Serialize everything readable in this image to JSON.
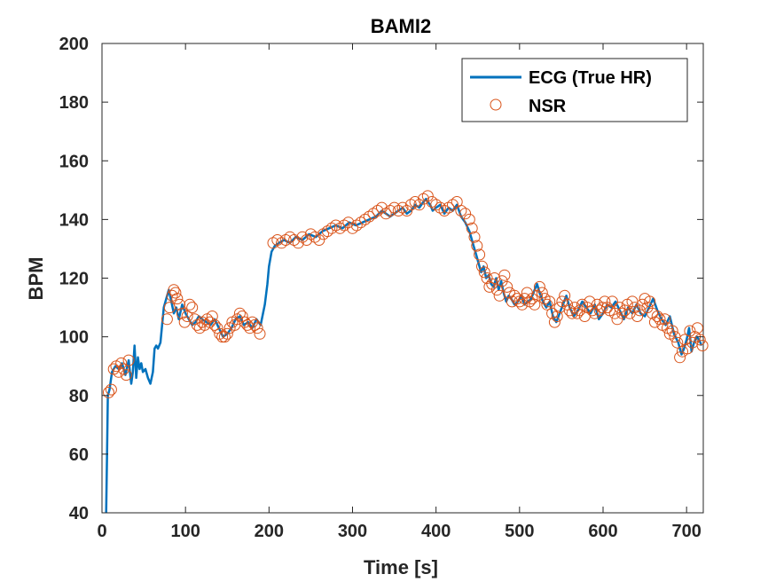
{
  "chart_data": {
    "type": "line",
    "title": "BAMI2",
    "xlabel": "Time [s]",
    "ylabel": "BPM",
    "xlim": [
      0,
      720
    ],
    "ylim": [
      40,
      200
    ],
    "xticks": [
      0,
      100,
      200,
      300,
      400,
      500,
      600,
      700
    ],
    "yticks": [
      40,
      60,
      80,
      100,
      120,
      140,
      160,
      180,
      200
    ],
    "grid": false,
    "legend_position": "top-right",
    "series": [
      {
        "name": "ECG (True HR)",
        "style": "line",
        "color": "#0072BD",
        "x": [
          5,
          6,
          7,
          9,
          12,
          16,
          20,
          24,
          28,
          32,
          35,
          37,
          39,
          41,
          43,
          45,
          47,
          49,
          52,
          55,
          58,
          61,
          63,
          65,
          67,
          70,
          72,
          74,
          77,
          80,
          83,
          86,
          89,
          92,
          96,
          100,
          104,
          108,
          112,
          116,
          120,
          125,
          130,
          135,
          140,
          145,
          150,
          155,
          160,
          165,
          170,
          175,
          180,
          185,
          190,
          195,
          198,
          200,
          203,
          207,
          212,
          218,
          225,
          232,
          240,
          248,
          256,
          264,
          272,
          280,
          288,
          296,
          304,
          312,
          320,
          328,
          335,
          340,
          345,
          350,
          355,
          360,
          365,
          370,
          375,
          380,
          385,
          388,
          390,
          393,
          396,
          400,
          405,
          410,
          415,
          420,
          425,
          430,
          435,
          440,
          445,
          448,
          451,
          454,
          457,
          460,
          463,
          466,
          469,
          472,
          475,
          478,
          481,
          484,
          487,
          490,
          494,
          498,
          502,
          506,
          510,
          514,
          518,
          521,
          524,
          528,
          532,
          536,
          540,
          544,
          548,
          552,
          556,
          560,
          565,
          570,
          575,
          580,
          585,
          590,
          595,
          600,
          605,
          610,
          615,
          620,
          625,
          630,
          635,
          640,
          645,
          650,
          655,
          660,
          665,
          670,
          675,
          680,
          685,
          690,
          694,
          697,
          700,
          703,
          706,
          709,
          712,
          715,
          718
        ],
        "y": [
          40,
          60,
          80,
          82,
          88,
          90,
          89,
          91,
          87,
          92,
          84,
          88,
          97,
          86,
          93,
          89,
          91,
          88,
          89,
          86,
          84,
          88,
          96,
          97,
          96,
          98,
          104,
          110,
          113,
          116,
          112,
          108,
          110,
          106,
          111,
          108,
          106,
          104,
          105,
          107,
          106,
          105,
          104,
          106,
          103,
          100,
          101,
          103,
          106,
          107,
          104,
          105,
          103,
          106,
          104,
          111,
          118,
          124,
          129,
          131,
          132,
          133,
          132,
          134,
          133,
          135,
          134,
          136,
          137,
          138,
          137,
          139,
          138,
          139,
          140,
          141,
          143,
          142,
          141,
          142,
          143,
          144,
          142,
          143,
          145,
          144,
          146,
          147,
          146,
          145,
          143,
          144,
          145,
          142,
          144,
          143,
          145,
          141,
          139,
          136,
          131,
          128,
          125,
          122,
          124,
          120,
          121,
          118,
          117,
          120,
          116,
          119,
          115,
          112,
          114,
          113,
          111,
          112,
          114,
          111,
          112,
          113,
          116,
          118,
          115,
          112,
          110,
          112,
          107,
          105,
          108,
          111,
          114,
          110,
          107,
          109,
          112,
          110,
          108,
          111,
          106,
          108,
          111,
          110,
          112,
          109,
          106,
          110,
          108,
          111,
          108,
          107,
          110,
          113,
          109,
          106,
          104,
          107,
          101,
          98,
          94,
          96,
          99,
          103,
          95,
          98,
          100,
          99,
          97
        ]
      },
      {
        "name": "NSR",
        "style": "marker",
        "marker": "circle",
        "color": "#D95319",
        "x": [
          8,
          11,
          14,
          17,
          20,
          23,
          26,
          29,
          32,
          78,
          81,
          84,
          86,
          88,
          90,
          93,
          96,
          99,
          102,
          105,
          108,
          111,
          114,
          117,
          120,
          123,
          126,
          129,
          132,
          135,
          138,
          141,
          144,
          147,
          150,
          153,
          156,
          159,
          162,
          165,
          168,
          171,
          174,
          177,
          180,
          183,
          186,
          189,
          205,
          210,
          215,
          220,
          225,
          230,
          235,
          240,
          245,
          250,
          255,
          260,
          265,
          270,
          275,
          280,
          285,
          290,
          295,
          300,
          305,
          310,
          315,
          320,
          325,
          330,
          335,
          340,
          345,
          350,
          355,
          360,
          365,
          370,
          375,
          380,
          385,
          390,
          395,
          400,
          405,
          410,
          415,
          420,
          425,
          430,
          435,
          440,
          443,
          446,
          449,
          452,
          455,
          458,
          461,
          464,
          467,
          470,
          473,
          476,
          479,
          482,
          485,
          488,
          491,
          494,
          497,
          500,
          503,
          506,
          509,
          512,
          515,
          518,
          521,
          524,
          527,
          530,
          533,
          536,
          539,
          542,
          545,
          548,
          551,
          554,
          557,
          560,
          563,
          566,
          569,
          572,
          575,
          578,
          581,
          584,
          587,
          590,
          593,
          596,
          599,
          602,
          605,
          608,
          611,
          614,
          617,
          620,
          623,
          626,
          629,
          632,
          635,
          638,
          641,
          644,
          647,
          650,
          653,
          656,
          659,
          662,
          665,
          668,
          671,
          674,
          677,
          680,
          683,
          686,
          689,
          692,
          695,
          698,
          701,
          704,
          707,
          710,
          713,
          716,
          719
        ],
        "y": [
          81,
          82,
          89,
          90,
          88,
          91,
          89,
          87,
          92,
          106,
          110,
          114,
          116,
          115,
          113,
          111,
          108,
          105,
          107,
          111,
          110,
          106,
          104,
          103,
          105,
          104,
          106,
          105,
          107,
          104,
          103,
          101,
          100,
          100,
          101,
          103,
          105,
          104,
          106,
          108,
          107,
          105,
          104,
          103,
          105,
          104,
          103,
          101,
          132,
          133,
          132,
          133,
          134,
          133,
          132,
          134,
          133,
          135,
          134,
          133,
          135,
          136,
          137,
          138,
          137,
          138,
          139,
          137,
          138,
          139,
          140,
          141,
          142,
          143,
          144,
          142,
          143,
          144,
          143,
          144,
          143,
          145,
          146,
          145,
          147,
          148,
          146,
          145,
          144,
          143,
          144,
          145,
          146,
          143,
          142,
          140,
          137,
          134,
          131,
          128,
          124,
          122,
          120,
          117,
          118,
          120,
          116,
          114,
          119,
          121,
          117,
          115,
          112,
          114,
          113,
          112,
          111,
          113,
          115,
          112,
          113,
          111,
          114,
          117,
          115,
          113,
          111,
          112,
          108,
          105,
          107,
          110,
          112,
          114,
          111,
          109,
          108,
          110,
          108,
          109,
          111,
          107,
          110,
          112,
          109,
          108,
          111,
          109,
          110,
          112,
          110,
          109,
          112,
          108,
          106,
          110,
          108,
          109,
          111,
          108,
          112,
          110,
          107,
          109,
          111,
          113,
          110,
          112,
          108,
          105,
          107,
          106,
          104,
          106,
          103,
          101,
          102,
          100,
          98,
          93,
          95,
          99,
          96,
          102,
          98,
          100,
          103,
          99,
          97
        ]
      }
    ]
  }
}
